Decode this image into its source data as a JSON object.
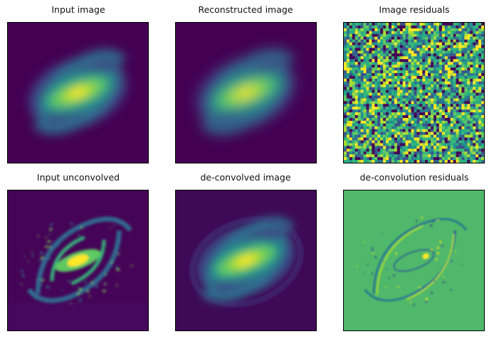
{
  "figure": {
    "panels": [
      {
        "id": "input",
        "title": "Input image",
        "kind": "blurred"
      },
      {
        "id": "reconstructed",
        "title": "Reconstructed image",
        "kind": "smooth"
      },
      {
        "id": "residuals",
        "title": "Image residuals",
        "kind": "noise"
      },
      {
        "id": "unconvolved",
        "title": "Input unconvolved",
        "kind": "sharp"
      },
      {
        "id": "deconvolved",
        "title": "de-convolved image",
        "kind": "deconv"
      },
      {
        "id": "deconv_residuals",
        "title": "de-convolution residuals",
        "kind": "deconvres"
      }
    ],
    "colormap": "viridis",
    "colors": {
      "background": "#440154",
      "dark_bg": "#3e0a58",
      "mid": "#21918c",
      "bright": "#fde725",
      "resid_bg": "#4fb86a"
    }
  }
}
